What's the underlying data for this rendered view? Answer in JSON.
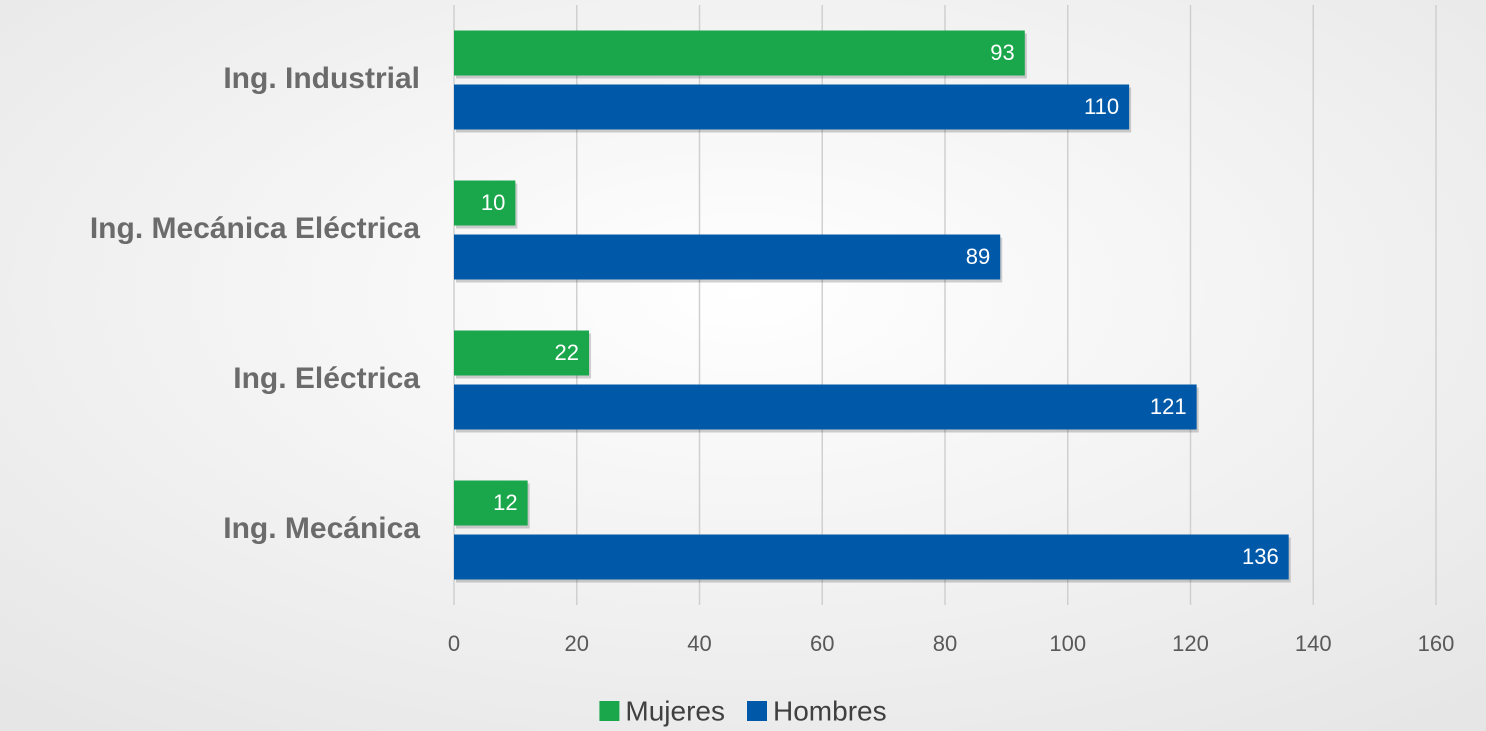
{
  "chart_data": {
    "type": "barh",
    "categories": [
      "Ing. Industrial",
      "Ing. Mecánica Eléctrica",
      "Ing. Eléctrica",
      "Ing. Mecánica"
    ],
    "series": [
      {
        "name": "Mujeres",
        "color": "#1aa64a",
        "values": [
          93,
          10,
          22,
          12
        ]
      },
      {
        "name": "Hombres",
        "color": "#0059a8",
        "values": [
          110,
          89,
          121,
          136
        ]
      }
    ],
    "xlim": [
      0,
      160
    ],
    "xticks": [
      0,
      20,
      40,
      60,
      80,
      100,
      120,
      140,
      160
    ],
    "grid": true,
    "legend": "bottom"
  }
}
